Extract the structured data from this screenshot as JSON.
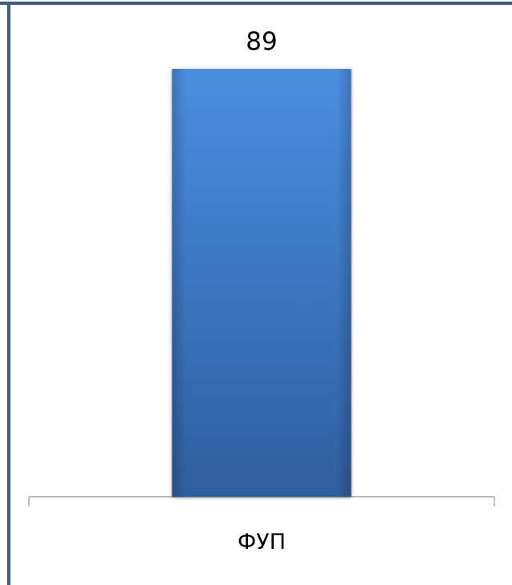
{
  "chart_data": {
    "type": "bar",
    "categories": [
      "ФУП"
    ],
    "values": [
      89
    ],
    "data_labels": [
      "89"
    ],
    "ylim": [
      0,
      89
    ],
    "grid": false,
    "legend": "none",
    "colors": {
      "bar_top": "#4a8ee0",
      "bar_bottom": "#2f5e9e",
      "frame": "#3b5f8a",
      "axis": "#a6a6a6"
    }
  }
}
